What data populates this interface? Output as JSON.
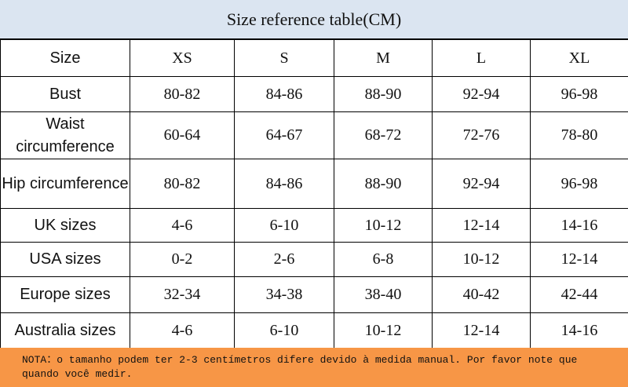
{
  "title": "Size reference table(CM)",
  "table": {
    "header": [
      "Size",
      "XS",
      "S",
      "M",
      "L",
      "XL"
    ],
    "rows": [
      [
        "Bust",
        "80-82",
        "84-86",
        "88-90",
        "92-94",
        "96-98"
      ],
      [
        "Waist circumference",
        "60-64",
        "64-67",
        "68-72",
        "72-76",
        "78-80"
      ],
      [
        "Hip circumference",
        "80-82",
        "84-86",
        "88-90",
        "92-94",
        "96-98"
      ],
      [
        "UK sizes",
        "4-6",
        "6-10",
        "10-12",
        "12-14",
        "14-16"
      ],
      [
        "USA sizes",
        "0-2",
        "2-6",
        "6-8",
        "10-12",
        "12-14"
      ],
      [
        "Europe sizes",
        "32-34",
        "34-38",
        "38-40",
        "40-42",
        "42-44"
      ],
      [
        "Australia sizes",
        "4-6",
        "6-10",
        "10-12",
        "12-14",
        "14-16"
      ]
    ]
  },
  "note": "NOTA：o tamanho podem ter 2-3 centímetros difere devido à medida manual. Por favor note que quando você medir."
}
